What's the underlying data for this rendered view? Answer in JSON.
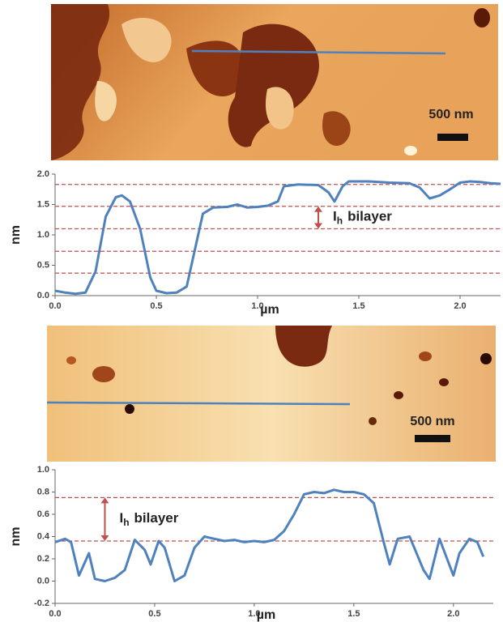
{
  "chart_data": [
    {
      "type": "line",
      "x_label": "µm",
      "y_label": "nm",
      "xlim": [
        0,
        2.2
      ],
      "ylim": [
        0,
        2
      ],
      "xticks": [
        {
          "value": 0,
          "label": "0.0"
        },
        0.5,
        {
          "value": 1,
          "label": "1.0"
        },
        1.5,
        {
          "value": 2,
          "label": "2.0"
        }
      ],
      "yticks": [
        {
          "value": 0,
          "label": "0.0"
        },
        0.5,
        {
          "value": 1,
          "label": "1.0"
        },
        1.5,
        {
          "value": 2,
          "label": "2.0"
        }
      ],
      "reference_lines": [
        0.37,
        0.73,
        1.1,
        1.47,
        1.83
      ],
      "reference_color": "#c0504d",
      "annotation": {
        "main": "I",
        "sub": "h",
        "rest": "bilayer",
        "x": 1.3,
        "from": 1.1,
        "to": 1.47
      },
      "image_scale_label": "500 nm",
      "series": [
        {
          "color": "#4f81bd",
          "x": [
            0,
            0.05,
            0.1,
            0.15,
            0.2,
            0.25,
            0.3,
            0.33,
            0.37,
            0.42,
            0.47,
            0.5,
            0.55,
            0.6,
            0.65,
            0.7,
            0.73,
            0.78,
            0.85,
            0.9,
            0.95,
            1.0,
            1.05,
            1.1,
            1.13,
            1.2,
            1.3,
            1.35,
            1.38,
            1.42,
            1.45,
            1.55,
            1.65,
            1.75,
            1.8,
            1.85,
            1.9,
            1.95,
            2.0,
            2.05,
            2.1,
            2.15,
            2.2
          ],
          "values": [
            0.08,
            0.05,
            0.03,
            0.05,
            0.4,
            1.3,
            1.62,
            1.65,
            1.55,
            1.1,
            0.3,
            0.08,
            0.04,
            0.05,
            0.15,
            0.9,
            1.35,
            1.45,
            1.46,
            1.5,
            1.45,
            1.46,
            1.48,
            1.55,
            1.8,
            1.83,
            1.82,
            1.7,
            1.55,
            1.8,
            1.88,
            1.88,
            1.86,
            1.85,
            1.78,
            1.6,
            1.65,
            1.75,
            1.86,
            1.88,
            1.87,
            1.85,
            1.84
          ]
        }
      ]
    },
    {
      "type": "line",
      "x_label": "µm",
      "y_label": "nm",
      "xlim": [
        0,
        2.2
      ],
      "ylim": [
        -0.2,
        1
      ],
      "xticks": [
        {
          "value": 0,
          "label": "0.0"
        },
        0.5,
        {
          "value": 1,
          "label": "1.0"
        },
        1.5,
        {
          "value": 2,
          "label": "2.0"
        }
      ],
      "yticks": [
        -0.2,
        {
          "value": 0,
          "label": "0.0"
        },
        0.2,
        0.4,
        0.6,
        0.8,
        {
          "value": 1,
          "label": "1.0"
        }
      ],
      "reference_lines": [
        0.36,
        0.75
      ],
      "reference_color": "#c0504d",
      "annotation": {
        "main": "I",
        "sub": "h",
        "rest": "bilayer",
        "x": 0.25,
        "from": 0.36,
        "to": 0.75
      },
      "image_scale_label": "500 nm",
      "series": [
        {
          "color": "#4f81bd",
          "x": [
            0,
            0.05,
            0.08,
            0.12,
            0.17,
            0.2,
            0.25,
            0.3,
            0.35,
            0.4,
            0.45,
            0.48,
            0.52,
            0.55,
            0.6,
            0.65,
            0.7,
            0.75,
            0.8,
            0.85,
            0.9,
            0.95,
            1.0,
            1.05,
            1.1,
            1.15,
            1.2,
            1.25,
            1.3,
            1.35,
            1.4,
            1.45,
            1.5,
            1.55,
            1.6,
            1.65,
            1.68,
            1.72,
            1.78,
            1.85,
            1.88,
            1.93,
            2.0,
            2.03,
            2.08,
            2.12,
            2.15
          ],
          "values": [
            0.35,
            0.38,
            0.35,
            0.05,
            0.25,
            0.02,
            0.0,
            0.03,
            0.1,
            0.37,
            0.28,
            0.15,
            0.36,
            0.3,
            0.0,
            0.05,
            0.3,
            0.4,
            0.38,
            0.36,
            0.37,
            0.35,
            0.36,
            0.35,
            0.37,
            0.45,
            0.6,
            0.78,
            0.8,
            0.79,
            0.82,
            0.8,
            0.8,
            0.78,
            0.7,
            0.35,
            0.15,
            0.38,
            0.4,
            0.1,
            0.02,
            0.38,
            0.05,
            0.25,
            0.38,
            0.35,
            0.22
          ]
        }
      ]
    }
  ]
}
